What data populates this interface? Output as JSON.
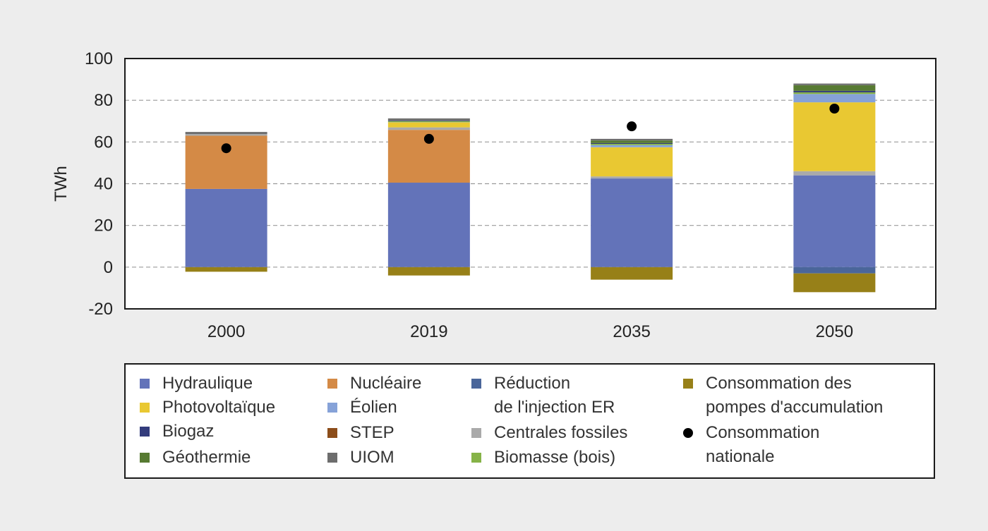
{
  "chart_data": {
    "type": "bar",
    "stacked": true,
    "ylabel": "TWh",
    "ylim": [
      -20,
      100
    ],
    "yticks": [
      100,
      80,
      60,
      40,
      20,
      0,
      -20
    ],
    "grid": true,
    "categories": [
      "2000",
      "2019",
      "2035",
      "2050"
    ],
    "series": [
      {
        "name": "Hydraulique",
        "color": "#6373b9",
        "values": [
          37.5,
          40.5,
          42.5,
          44
        ]
      },
      {
        "name": "Nucléaire",
        "color": "#d48a46",
        "values": [
          25.5,
          25.3,
          0,
          0
        ]
      },
      {
        "name": "Centrales fossiles",
        "color": "#aaaaaa",
        "values": [
          0.8,
          1.2,
          1,
          2
        ]
      },
      {
        "name": "Photovoltaïque",
        "color": "#e9c832",
        "values": [
          0,
          2.4,
          14,
          33
        ]
      },
      {
        "name": "Éolien",
        "color": "#86a2d8",
        "values": [
          0,
          0.1,
          1,
          4
        ]
      },
      {
        "name": "Biomasse (bois)",
        "color": "#86b348",
        "values": [
          0,
          0.5,
          0.6,
          0.8
        ]
      },
      {
        "name": "Biogaz",
        "color": "#333c7c",
        "values": [
          0,
          0.3,
          0.4,
          0.7
        ]
      },
      {
        "name": "Géothermie",
        "color": "#577a32",
        "values": [
          0,
          0,
          1.2,
          2.7
        ]
      },
      {
        "name": "UIOM",
        "color": "#6d6d6d",
        "values": [
          1,
          1,
          0.8,
          0.8
        ]
      },
      {
        "name": "Réduction de l'injection ER",
        "color": "#4a669a",
        "values": [
          0,
          0,
          0,
          -3
        ]
      },
      {
        "name": "Consommation des pompes d'accumulation",
        "color": "#978018",
        "values": [
          -2.2,
          -4,
          -6,
          -9
        ]
      },
      {
        "name": "STEP",
        "color": "#8c4d1a",
        "values": [
          0,
          0,
          0,
          0
        ]
      }
    ],
    "markers": {
      "name": "Consommation nationale",
      "color": "#000000",
      "values": [
        57,
        61.5,
        67.5,
        76
      ]
    }
  },
  "legend": {
    "items": [
      {
        "label": "Hydraulique",
        "color": "#6373b9"
      },
      {
        "label": "Photovoltaïque",
        "color": "#e9c832"
      },
      {
        "label": "Biogaz",
        "color": "#333c7c"
      },
      {
        "label": "Géothermie",
        "color": "#577a32"
      },
      {
        "label": "Nucléaire",
        "color": "#d48a46"
      },
      {
        "label": "Éolien",
        "color": "#86a2d8"
      },
      {
        "label": "STEP",
        "color": "#8c4d1a"
      },
      {
        "label": "UIOM",
        "color": "#6d6d6d"
      },
      {
        "label": "Réduction\nde l'injection ER",
        "color": "#4a669a"
      },
      {
        "label": "Centrales fossiles",
        "color": "#aaaaaa"
      },
      {
        "label": "Biomasse (bois)",
        "color": "#86b348"
      },
      {
        "label": "Consommation des\npompes d'accumulation",
        "color": "#978018"
      },
      {
        "label": "Consommation\nnationale",
        "color": "#000000",
        "marker": "dot"
      }
    ]
  }
}
